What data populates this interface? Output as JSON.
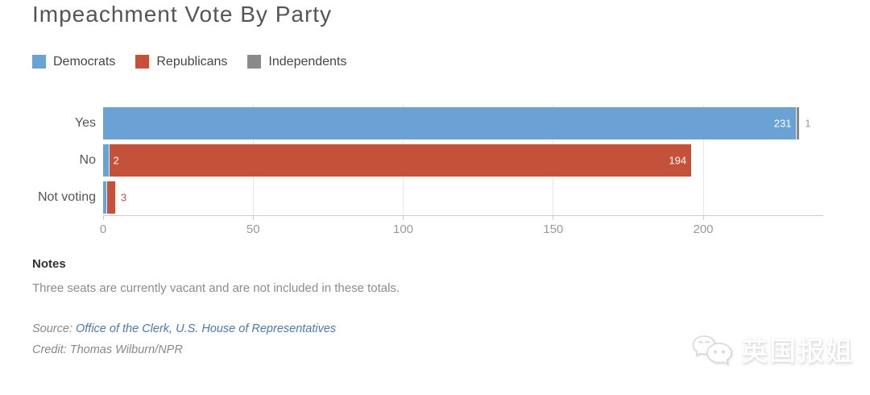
{
  "title": "Impeachment Vote By Party",
  "legend": [
    {
      "label": "Democrats",
      "color": "#6aa2d4"
    },
    {
      "label": "Republicans",
      "color": "#c4513a"
    },
    {
      "label": "Independents",
      "color": "#8a8a8a"
    }
  ],
  "chart_data": {
    "type": "bar",
    "orientation": "horizontal",
    "stacked": true,
    "title": "Impeachment Vote By Party",
    "categories": [
      "Yes",
      "No",
      "Not voting"
    ],
    "series": [
      {
        "name": "Democrats",
        "color": "#6aa2d4",
        "values": [
          231,
          2,
          1
        ]
      },
      {
        "name": "Republicans",
        "color": "#c4513a",
        "values": [
          0,
          194,
          3
        ]
      },
      {
        "name": "Independents",
        "color": "#8a8a8a",
        "values": [
          1,
          0,
          0
        ]
      }
    ],
    "xlim": [
      0,
      240
    ],
    "xticks": [
      0,
      50,
      100,
      150,
      200
    ],
    "grid": true,
    "legend_position": "top",
    "value_labels": [
      [
        {
          "series": "Democrats",
          "text": "231",
          "placement": "inside-end",
          "color": "#ffffff"
        },
        {
          "series": "Independents",
          "text": "1",
          "placement": "outside",
          "color": "#999999"
        }
      ],
      [
        {
          "series": "Democrats",
          "text": "2",
          "placement": "inside-start-after",
          "color": "#ffffff"
        },
        {
          "series": "Republicans",
          "text": "194",
          "placement": "inside-end",
          "color": "#ffffff"
        }
      ],
      [
        {
          "series": "Republicans",
          "text": "3",
          "placement": "outside",
          "color": "#c4513a"
        }
      ]
    ]
  },
  "notes": {
    "heading": "Notes",
    "text": "Three seats are currently vacant and are not included in these totals."
  },
  "source": {
    "prefix": "Source: ",
    "link_text": "Office of the Clerk, U.S. House of Representatives"
  },
  "credit": "Credit: Thomas Wilburn/NPR",
  "watermark": {
    "text": "英国报姐"
  }
}
